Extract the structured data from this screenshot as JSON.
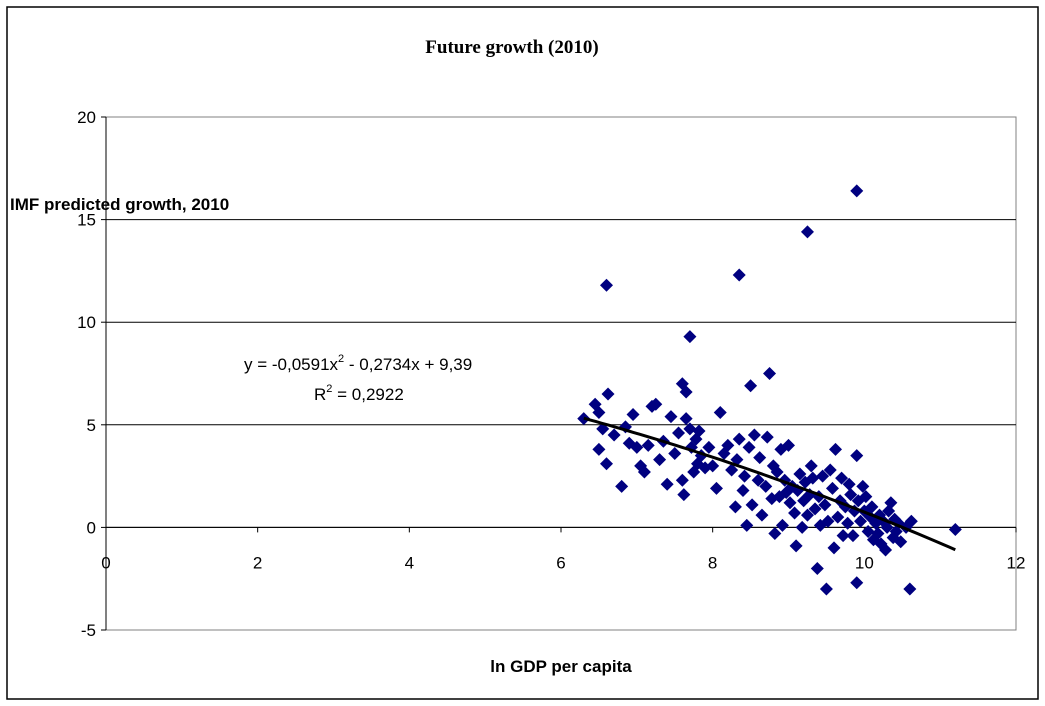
{
  "chart_data": {
    "type": "scatter",
    "title": "Future growth (2010)",
    "xlabel": "ln GDP per capita",
    "ylabel": "IMF predicted growth, 2010",
    "xlim": [
      0,
      12
    ],
    "ylim": [
      -5,
      20
    ],
    "x_ticks": [
      "0",
      "2",
      "4",
      "6",
      "8",
      "10",
      "12"
    ],
    "y_ticks": [
      "-5",
      "0",
      "5",
      "10",
      "15",
      "20"
    ],
    "grid": "horizontal",
    "legend": "none",
    "marker": "diamond",
    "marker_color": "#000080",
    "trendline": {
      "type": "polynomial",
      "coefficients": {
        "a": -0.0591,
        "b": -0.2734,
        "c": 9.39
      },
      "x_range": [
        6.3,
        11.2
      ],
      "color": "#000000",
      "equation_text": "y = -0,0591x",
      "equation_sup": "2",
      "equation_rest": " - 0,2734x + 9,39",
      "r2_prefix": "R",
      "r2_sup": "2",
      "r2_rest": " = 0,2922"
    },
    "points": [
      [
        6.3,
        5.3
      ],
      [
        6.45,
        6.0
      ],
      [
        6.5,
        5.6
      ],
      [
        6.55,
        4.8
      ],
      [
        6.6,
        3.1
      ],
      [
        6.5,
        3.8
      ],
      [
        6.62,
        6.5
      ],
      [
        6.7,
        4.5
      ],
      [
        6.8,
        2.0
      ],
      [
        6.85,
        4.9
      ],
      [
        6.9,
        4.1
      ],
      [
        6.95,
        5.5
      ],
      [
        7.0,
        3.9
      ],
      [
        7.05,
        3.0
      ],
      [
        7.1,
        2.7
      ],
      [
        7.15,
        4.0
      ],
      [
        7.2,
        5.9
      ],
      [
        7.25,
        6.0
      ],
      [
        7.3,
        3.3
      ],
      [
        7.35,
        4.2
      ],
      [
        7.4,
        2.1
      ],
      [
        7.45,
        5.4
      ],
      [
        7.5,
        3.6
      ],
      [
        7.55,
        4.6
      ],
      [
        7.6,
        7.0
      ],
      [
        7.6,
        2.3
      ],
      [
        7.62,
        1.6
      ],
      [
        7.65,
        5.3
      ],
      [
        7.65,
        6.6
      ],
      [
        7.7,
        4.8
      ],
      [
        7.72,
        3.9
      ],
      [
        7.75,
        2.7
      ],
      [
        7.78,
        4.3
      ],
      [
        7.8,
        3.1
      ],
      [
        7.82,
        4.7
      ],
      [
        7.85,
        3.5
      ],
      [
        7.9,
        2.9
      ],
      [
        7.95,
        3.9
      ],
      [
        8.0,
        3.0
      ],
      [
        8.05,
        1.9
      ],
      [
        8.1,
        5.6
      ],
      [
        8.15,
        3.6
      ],
      [
        8.2,
        4.0
      ],
      [
        8.25,
        2.8
      ],
      [
        8.3,
        1.0
      ],
      [
        8.32,
        3.3
      ],
      [
        8.35,
        4.3
      ],
      [
        8.4,
        1.8
      ],
      [
        8.42,
        2.5
      ],
      [
        8.45,
        0.1
      ],
      [
        8.48,
        3.9
      ],
      [
        8.5,
        6.9
      ],
      [
        8.52,
        1.1
      ],
      [
        8.55,
        4.5
      ],
      [
        8.6,
        2.3
      ],
      [
        8.62,
        3.4
      ],
      [
        8.65,
        0.6
      ],
      [
        8.7,
        2.0
      ],
      [
        8.72,
        4.4
      ],
      [
        8.75,
        7.5
      ],
      [
        8.78,
        1.4
      ],
      [
        8.8,
        3.0
      ],
      [
        8.82,
        -0.3
      ],
      [
        8.85,
        2.7
      ],
      [
        8.88,
        1.5
      ],
      [
        8.9,
        3.8
      ],
      [
        8.92,
        0.1
      ],
      [
        8.95,
        2.3
      ],
      [
        8.97,
        1.7
      ],
      [
        9.0,
        4.0
      ],
      [
        9.02,
        1.2
      ],
      [
        9.05,
        2.0
      ],
      [
        9.08,
        0.7
      ],
      [
        9.1,
        -0.9
      ],
      [
        9.12,
        1.8
      ],
      [
        9.15,
        2.6
      ],
      [
        9.18,
        0.0
      ],
      [
        9.2,
        1.3
      ],
      [
        9.22,
        2.2
      ],
      [
        9.25,
        0.6
      ],
      [
        9.28,
        1.6
      ],
      [
        9.3,
        3.0
      ],
      [
        9.32,
        2.4
      ],
      [
        9.35,
        0.9
      ],
      [
        9.38,
        -2.0
      ],
      [
        9.4,
        1.5
      ],
      [
        9.42,
        0.1
      ],
      [
        9.45,
        2.5
      ],
      [
        9.48,
        1.1
      ],
      [
        9.5,
        -3.0
      ],
      [
        9.52,
        0.3
      ],
      [
        9.55,
        2.8
      ],
      [
        9.58,
        1.9
      ],
      [
        9.6,
        -1.0
      ],
      [
        9.62,
        3.8
      ],
      [
        9.65,
        0.5
      ],
      [
        9.68,
        1.3
      ],
      [
        9.7,
        2.4
      ],
      [
        9.72,
        -0.4
      ],
      [
        9.75,
        1.0
      ],
      [
        9.78,
        0.2
      ],
      [
        9.8,
        2.1
      ],
      [
        9.82,
        1.6
      ],
      [
        9.85,
        -0.4
      ],
      [
        9.87,
        0.8
      ],
      [
        9.9,
        3.5
      ],
      [
        9.9,
        -2.7
      ],
      [
        9.92,
        1.3
      ],
      [
        9.95,
        0.3
      ],
      [
        9.98,
        2.0
      ],
      [
        10.0,
        0.8
      ],
      [
        10.02,
        1.5
      ],
      [
        10.05,
        -0.2
      ],
      [
        10.08,
        0.5
      ],
      [
        10.1,
        1.0
      ],
      [
        10.12,
        -0.6
      ],
      [
        10.15,
        0.2
      ],
      [
        10.18,
        -0.3
      ],
      [
        10.2,
        0.6
      ],
      [
        10.22,
        -0.8
      ],
      [
        10.25,
        0.3
      ],
      [
        10.28,
        -1.1
      ],
      [
        10.3,
        0.0
      ],
      [
        10.32,
        0.8
      ],
      [
        10.35,
        1.2
      ],
      [
        10.38,
        -0.5
      ],
      [
        10.4,
        0.4
      ],
      [
        10.42,
        -0.2
      ],
      [
        10.45,
        0.2
      ],
      [
        10.48,
        -0.7
      ],
      [
        10.55,
        0.0
      ],
      [
        10.6,
        -3.0
      ],
      [
        10.62,
        0.3
      ],
      [
        11.2,
        -0.1
      ],
      [
        6.6,
        11.8
      ],
      [
        7.7,
        9.3
      ],
      [
        8.35,
        12.3
      ],
      [
        9.25,
        14.4
      ],
      [
        9.9,
        16.4
      ]
    ]
  }
}
